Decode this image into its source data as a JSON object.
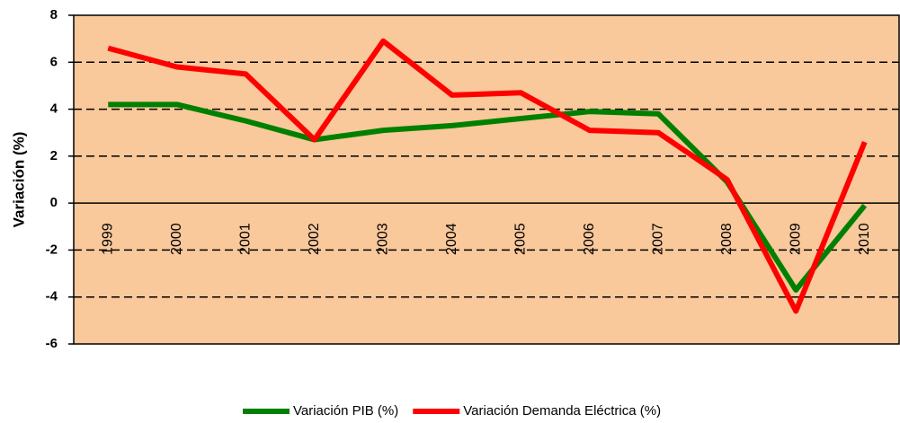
{
  "chart_data": {
    "type": "line",
    "ylabel": "Variación (%)",
    "categories": [
      "1999",
      "2000",
      "2001",
      "2002",
      "2003",
      "2004",
      "2005",
      "2006",
      "2007",
      "2008",
      "2009",
      "2010"
    ],
    "series": [
      {
        "name": "Variación PIB (%)",
        "color": "#008000",
        "values": [
          4.2,
          4.2,
          3.5,
          2.7,
          3.1,
          3.3,
          3.6,
          3.9,
          3.8,
          0.9,
          -3.7,
          -0.1
        ]
      },
      {
        "name": "Variación Demanda Eléctrica (%)",
        "color": "#ff0000",
        "values": [
          6.6,
          5.8,
          5.5,
          2.7,
          6.9,
          4.6,
          4.7,
          3.1,
          3.0,
          1.0,
          -4.6,
          2.6
        ]
      }
    ],
    "ylim": [
      -6,
      8
    ],
    "yticks": [
      -6,
      -4,
      -2,
      0,
      2,
      4,
      6,
      8
    ],
    "grid": true,
    "legend": "bottom",
    "background": "#f9c89b"
  }
}
